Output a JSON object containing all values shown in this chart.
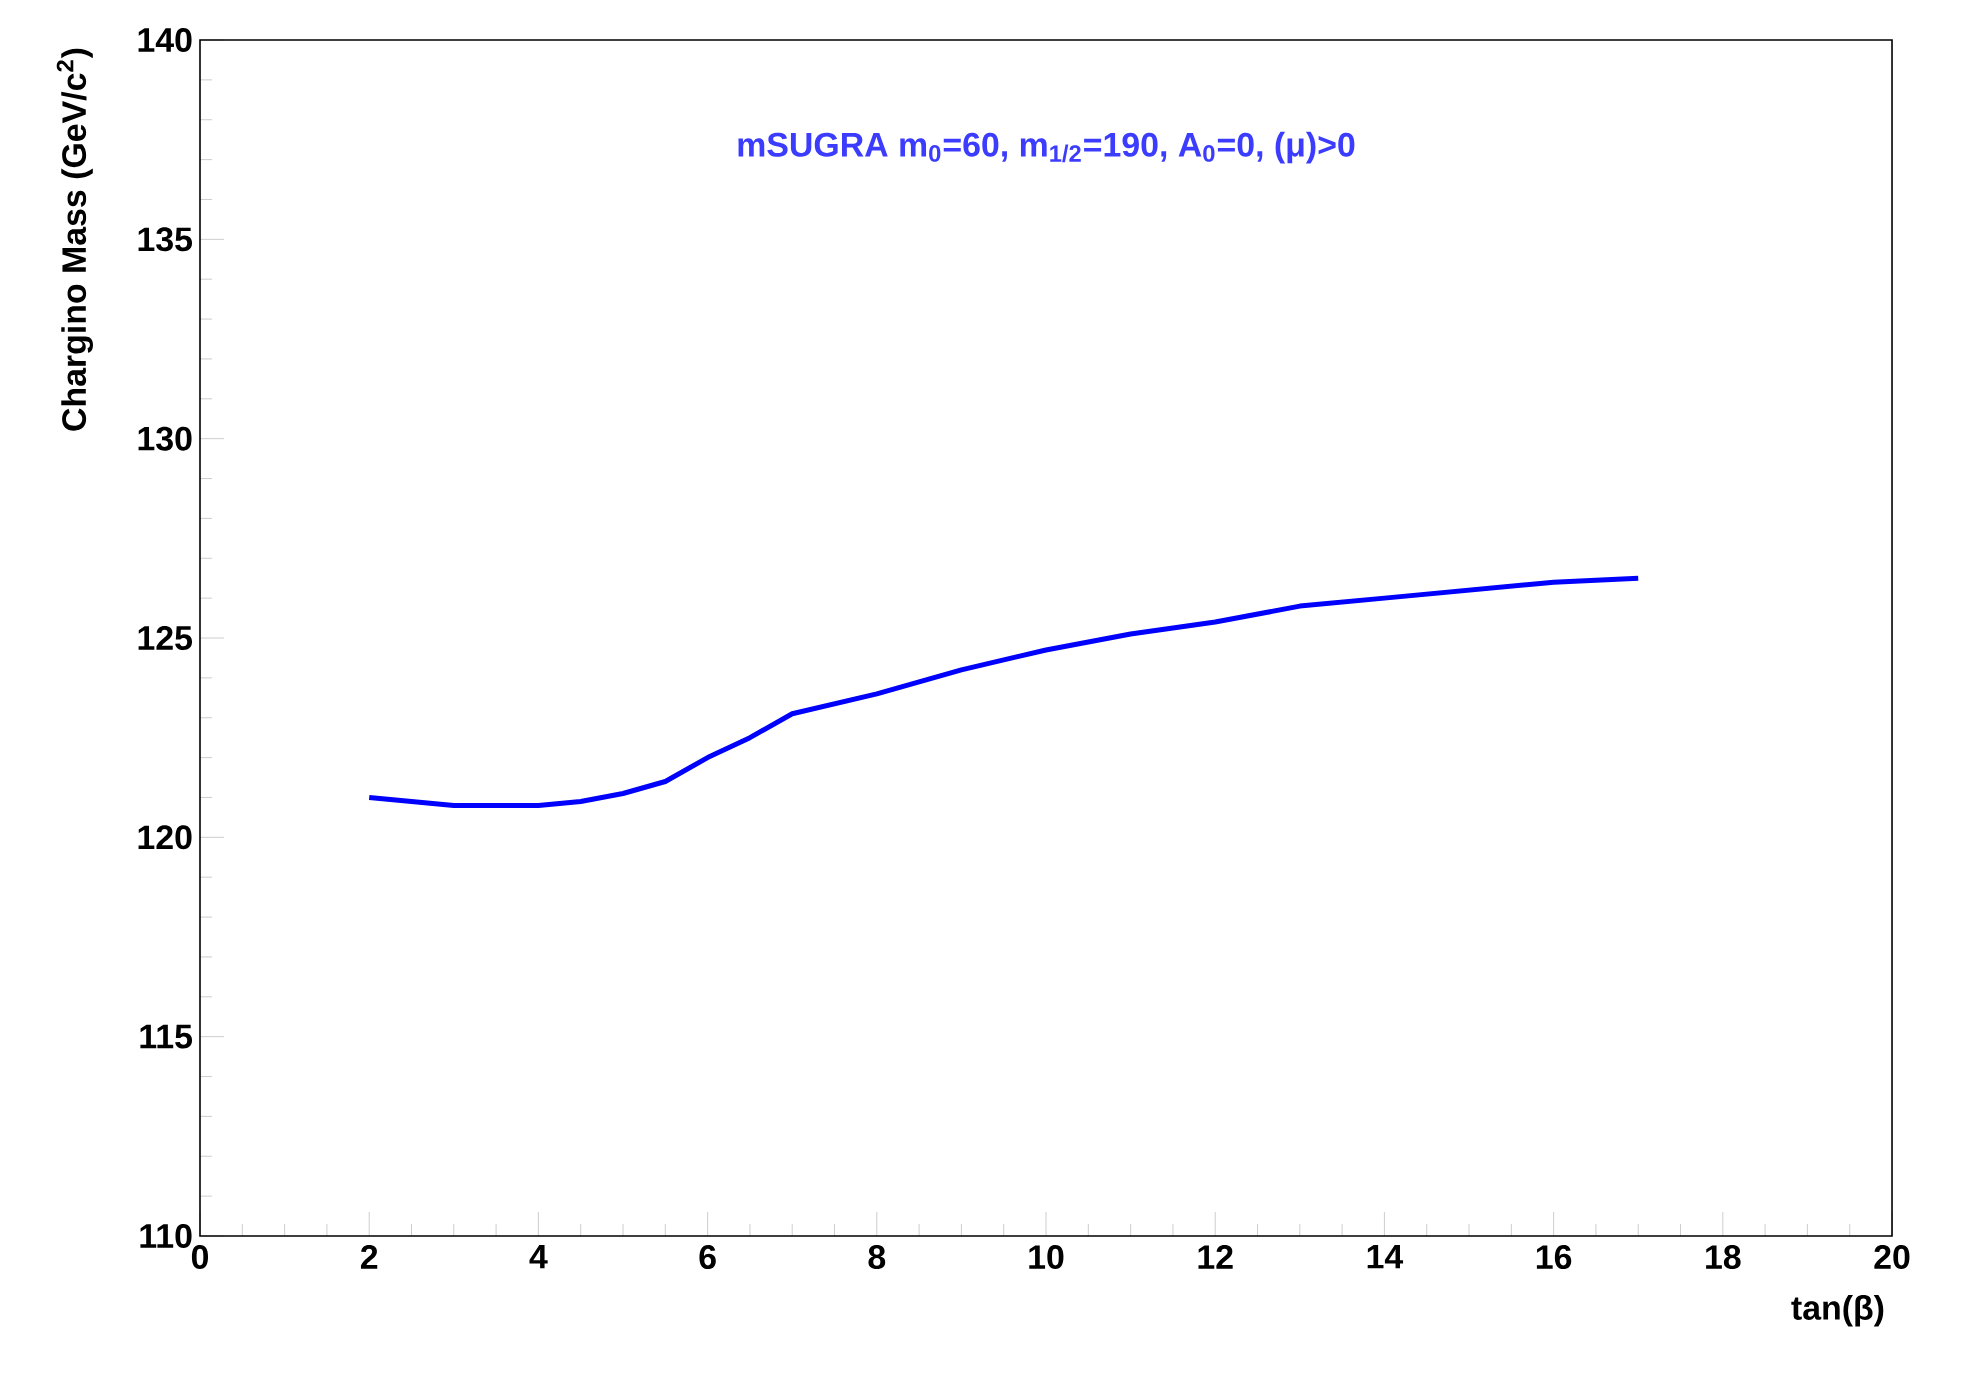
{
  "chart_data": {
    "type": "line",
    "title": "mSUGRA m$_{0}$=60, m$_{1/2}$=190, A$_{0}$=0, (μ)>0",
    "xlabel": "tan(β)",
    "ylabel": "Chargino Mass (GeV/c$^{2}$)",
    "x": [
      2,
      2.5,
      3,
      4,
      4.5,
      5,
      5.5,
      6,
      6.5,
      7,
      8,
      9,
      10,
      11,
      12,
      13,
      14,
      15,
      16,
      17
    ],
    "series": [
      {
        "color": "#0000ff",
        "values": [
          121.0,
          120.9,
          120.8,
          120.8,
          120.9,
          121.1,
          121.4,
          122.0,
          122.5,
          123.1,
          123.6,
          124.2,
          124.7,
          125.1,
          125.4,
          125.8,
          126.0,
          126.2,
          126.4,
          126.5
        ]
      }
    ],
    "xlim": [
      0,
      20
    ],
    "ylim": [
      110,
      140
    ],
    "xticks": [
      0,
      2,
      4,
      6,
      8,
      10,
      12,
      14,
      16,
      18,
      20
    ],
    "yticks": [
      110,
      115,
      120,
      125,
      130,
      135,
      140
    ],
    "marker": "none",
    "line_style": "solid"
  }
}
